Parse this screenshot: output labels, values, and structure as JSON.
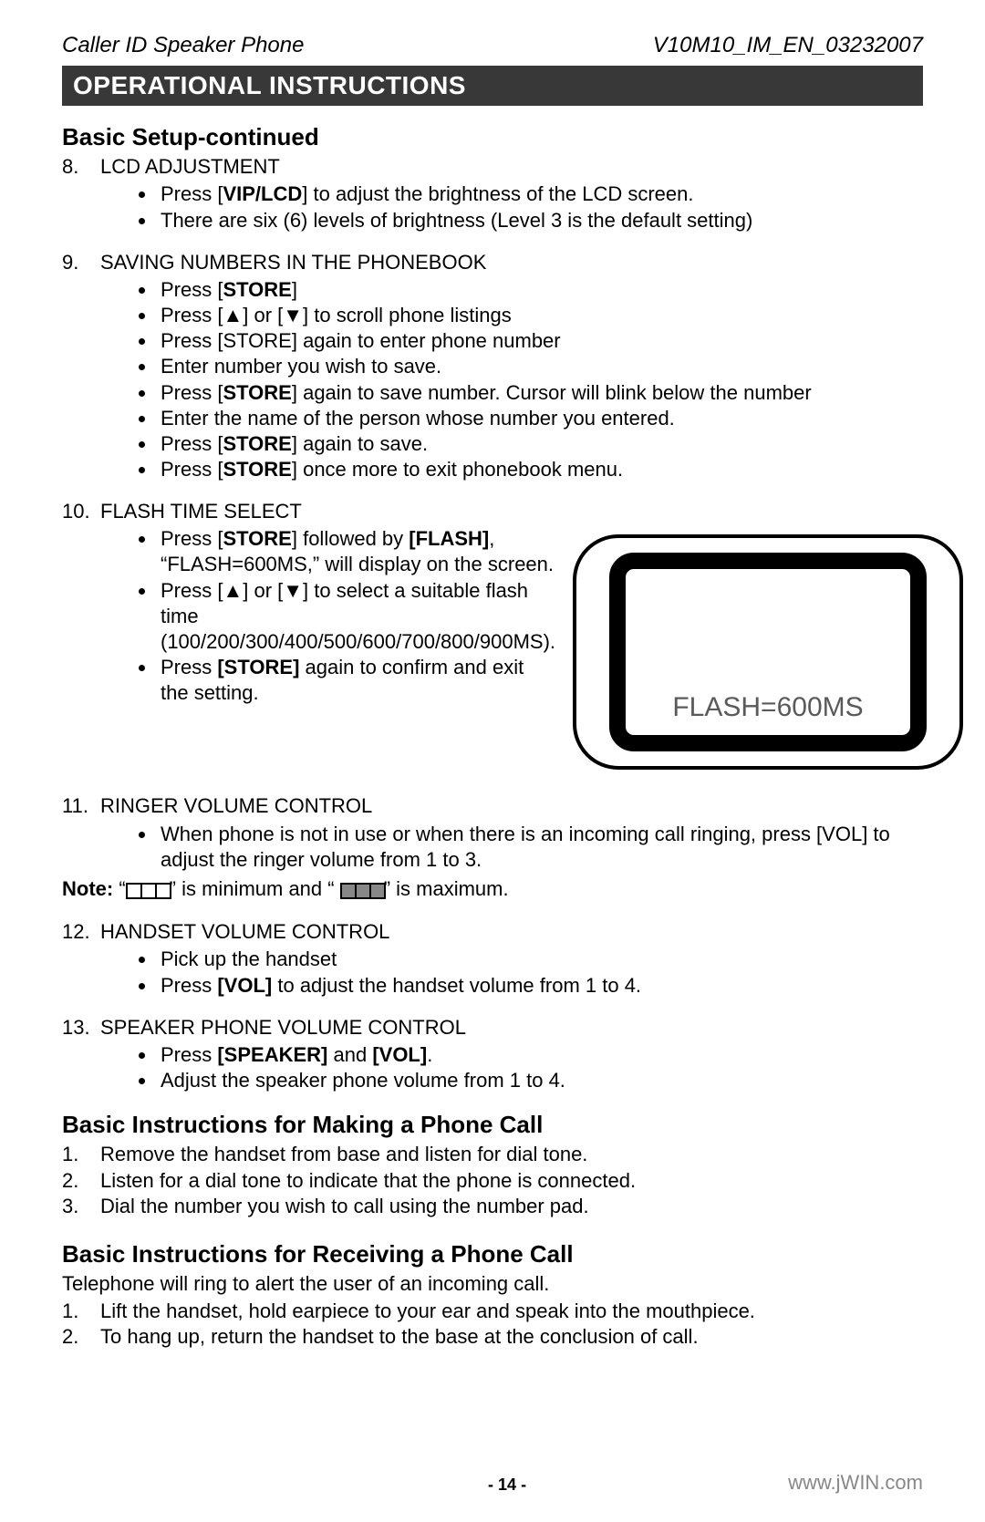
{
  "header": {
    "left": "Caller ID Speaker Phone",
    "right": "V10M10_IM_EN_03232007"
  },
  "banner": "OPERATIONAL INSTRUCTIONS",
  "section1": {
    "title": "Basic Setup-continued",
    "items": [
      {
        "num": "8.",
        "title": "LCD ADJUSTMENT",
        "bullets": [
          {
            "pre": "Press [",
            "bold": "VIP/LCD",
            "post": "] to adjust the brightness of the LCD screen."
          },
          {
            "text": "There are six (6) levels of brightness (Level 3 is the default setting)"
          }
        ]
      },
      {
        "num": "9.",
        "title": "SAVING NUMBERS IN THE PHONEBOOK",
        "bullets": [
          {
            "pre": "Press [",
            "bold": "STORE",
            "post": "]"
          },
          {
            "text": "Press [▲] or [▼] to scroll  phone listings"
          },
          {
            "text": "Press [STORE] again to enter phone number"
          },
          {
            "text": "Enter number you wish to save."
          },
          {
            "pre": "Press [",
            "bold": "STORE",
            "post": "] again to save number. Cursor will blink  below the number"
          },
          {
            "text": "Enter the name of the person whose number you entered."
          },
          {
            "pre": "Press [",
            "bold": "STORE",
            "post": "] again to save."
          },
          {
            "pre": "Press [",
            "bold": "STORE",
            "post": "] once more to exit phonebook menu."
          }
        ]
      },
      {
        "num": "10.",
        "title": "FLASH TIME SELECT",
        "flash": true,
        "bullets": [
          {
            "pre": "Press [",
            "bold": "STORE",
            "post": "] followed by ",
            "bold2": "[FLASH]",
            "post2": ", “FLASH=600MS,” will display on the screen."
          },
          {
            "text": "Press [▲] or [▼] to select a suitable flash time (100/200/300/400/500/600/700/800/900MS)."
          },
          {
            "pre": "Press ",
            "bold": "[STORE]",
            "post": " again to confirm and exit the setting."
          }
        ],
        "lcd_text": "FLASH=600MS"
      },
      {
        "num": "11.",
        "title": "RINGER VOLUME CONTROL",
        "bullets": [
          {
            "text": "When phone is not in use or when there is an incoming call ringing, press [VOL] to adjust the ringer volume from 1 to 3."
          }
        ],
        "note_pre": "Note:",
        "note_mid1": " “",
        "note_mid2": "” is minimum and “ ",
        "note_post": "” is maximum."
      },
      {
        "num": "12.",
        "title": "HANDSET VOLUME CONTROL",
        "bullets": [
          {
            "text": "Pick up the handset"
          },
          {
            "pre": "Press ",
            "bold": "[VOL]",
            "post": " to adjust the handset volume from 1 to 4."
          }
        ]
      },
      {
        "num": "13.",
        "title": "SPEAKER PHONE VOLUME CONTROL",
        "bullets": [
          {
            "pre": "Press ",
            "bold": "[SPEAKER]",
            "post": " and ",
            "bold2": "[VOL]",
            "post2": "."
          },
          {
            "text": "Adjust the speaker phone volume from 1 to 4."
          }
        ]
      }
    ]
  },
  "section2": {
    "title": "Basic Instructions for Making a Phone Call",
    "items": [
      {
        "num": "1.",
        "text": "Remove the handset from base and listen for dial tone."
      },
      {
        "num": "2.",
        "text": "Listen for a dial tone to indicate that the phone is connected."
      },
      {
        "num": "3.",
        "text": "Dial the number you wish to call using the number pad."
      }
    ]
  },
  "section3": {
    "title": "Basic Instructions for Receiving a Phone Call",
    "intro": "Telephone will ring to alert the user of an incoming call.",
    "items": [
      {
        "num": "1.",
        "text": "Lift the handset, hold earpiece to your ear and speak into the mouthpiece."
      },
      {
        "num": "2.",
        "text": "To hang up, return the handset to the base at the conclusion of call."
      }
    ]
  },
  "footer": {
    "page": "- 14 -",
    "site": "www.jWIN.com"
  },
  "lcd_style": {
    "outer_border": "#000",
    "screen_border": "#000",
    "screen_bg": "#fff",
    "text_color": "#5a5a5a",
    "text_fontsize": 30
  }
}
